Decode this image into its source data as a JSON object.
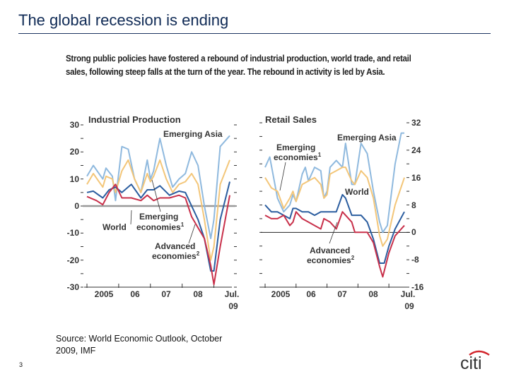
{
  "slide": {
    "title": "The global recession is ending",
    "intro": "Strong public policies have fostered a rebound of industrial production, world trade, and retail sales, following steep falls at the turn of the year. The rebound in activity is led by Asia.",
    "source_line1": "Source: World Economic Outlook, October",
    "source_line2": "2009, IMF",
    "page_number": "3",
    "logo_text": "citi"
  },
  "colors": {
    "emerging_asia": "#8fb9de",
    "emerging_economies": "#f3c679",
    "world": "#2b5d9f",
    "advanced_economies": "#c8304a",
    "zero_line_ip": "#999999",
    "zero_line_rs": "#222222",
    "title": "#0f2a55",
    "logo_arc": "#d2232a",
    "logo_text": "#8a8d91"
  },
  "chart_data": [
    {
      "type": "line",
      "title": "Industrial Production",
      "ylim": [
        -30,
        30
      ],
      "yticks": [
        "30",
        "20",
        "10",
        "0",
        "-10",
        "-20",
        "-30"
      ],
      "xlim": [
        2005,
        2009.5
      ],
      "xticks": [
        "2005",
        "06",
        "07",
        "08",
        "Jul.",
        "09"
      ],
      "axis_side": "left",
      "labels": {
        "emerging_asia": "Emerging Asia",
        "emerging_economies_1": "Emerging",
        "emerging_economies_2": "economies",
        "emerging_economies_sup": "1",
        "world": "World",
        "advanced_1": "Advanced",
        "advanced_2": "economies",
        "advanced_sup": "2"
      },
      "series": [
        {
          "name": "Emerging Asia",
          "color_key": "emerging_asia",
          "x": [
            2005.0,
            2005.2,
            2005.5,
            2005.6,
            2005.8,
            2005.9,
            2006.1,
            2006.3,
            2006.5,
            2006.7,
            2006.9,
            2007.0,
            2007.1,
            2007.3,
            2007.5,
            2007.7,
            2007.9,
            2008.1,
            2008.3,
            2008.5,
            2008.7,
            2008.9,
            2009.0,
            2009.2,
            2009.5
          ],
          "y": [
            11,
            15,
            10,
            14,
            11,
            2,
            22,
            21,
            10,
            5,
            17,
            10,
            13,
            25,
            15,
            7,
            10,
            12,
            20,
            15,
            0,
            -12,
            -5,
            22,
            26
          ]
        },
        {
          "name": "Emerging economies",
          "color_key": "emerging_economies",
          "x": [
            2005.0,
            2005.2,
            2005.5,
            2005.6,
            2005.8,
            2005.9,
            2006.1,
            2006.3,
            2006.5,
            2006.7,
            2006.9,
            2007.0,
            2007.1,
            2007.3,
            2007.5,
            2007.7,
            2007.9,
            2008.1,
            2008.3,
            2008.5,
            2008.7,
            2008.9,
            2009.0,
            2009.2,
            2009.5
          ],
          "y": [
            8,
            12,
            7,
            11,
            10,
            5,
            13,
            17,
            10,
            5,
            12,
            9,
            11,
            17,
            10,
            5,
            8,
            9,
            12,
            8,
            -5,
            -20,
            -15,
            8,
            17
          ]
        },
        {
          "name": "World",
          "color_key": "world",
          "x": [
            2005.0,
            2005.2,
            2005.5,
            2005.7,
            2005.9,
            2006.1,
            2006.4,
            2006.7,
            2006.9,
            2007.1,
            2007.3,
            2007.6,
            2007.9,
            2008.1,
            2008.3,
            2008.5,
            2008.7,
            2008.9,
            2009.0,
            2009.2,
            2009.5
          ],
          "y": [
            5,
            5.5,
            3,
            6,
            7,
            5,
            8,
            3,
            6,
            6,
            7.5,
            4,
            5.5,
            5,
            0,
            -5,
            -12,
            -24,
            -24,
            -5,
            9
          ]
        },
        {
          "name": "Advanced economies",
          "color_key": "advanced_economies",
          "x": [
            2005.0,
            2005.3,
            2005.5,
            2005.7,
            2005.9,
            2006.1,
            2006.4,
            2006.7,
            2006.9,
            2007.1,
            2007.3,
            2007.6,
            2007.9,
            2008.1,
            2008.3,
            2008.5,
            2008.7,
            2008.9,
            2009.0,
            2009.2,
            2009.5
          ],
          "y": [
            3.5,
            2,
            0.5,
            5,
            8,
            3,
            3,
            2,
            4,
            2,
            3,
            3,
            4,
            3,
            -4,
            -8,
            -12,
            -22,
            -29,
            -15,
            4
          ]
        }
      ]
    },
    {
      "type": "line",
      "title": "Retail Sales",
      "ylim": [
        -16,
        32
      ],
      "yticks": [
        "32",
        "24",
        "16",
        "8",
        "0",
        "-8",
        "-16"
      ],
      "xlim": [
        2005,
        2009.5
      ],
      "xticks": [
        "2005",
        "06",
        "07",
        "08",
        "Jul.",
        "09"
      ],
      "axis_side": "right",
      "labels": {
        "emerging_asia": "Emerging Asia",
        "emerging_economies_1": "Emerging",
        "emerging_economies_2": "economies",
        "emerging_economies_sup": "1",
        "world": "World",
        "advanced_1": "Advanced",
        "advanced_2": "economies",
        "advanced_sup": "2"
      },
      "series": [
        {
          "name": "Emerging Asia",
          "color_key": "emerging_asia",
          "x": [
            2005.0,
            2005.15,
            2005.4,
            2005.6,
            2005.8,
            2005.9,
            2006.0,
            2006.2,
            2006.3,
            2006.4,
            2006.6,
            2006.8,
            2006.9,
            2007.0,
            2007.1,
            2007.3,
            2007.5,
            2007.6,
            2007.8,
            2007.9,
            2008.1,
            2008.3,
            2008.5,
            2008.7,
            2008.8,
            2008.95,
            2009.2,
            2009.4,
            2009.5
          ],
          "y": [
            19,
            22,
            10,
            6,
            8,
            11,
            9,
            17,
            19,
            15,
            19,
            18,
            10,
            12,
            19,
            21,
            19,
            26,
            14,
            14,
            26,
            23,
            12,
            3,
            0,
            2,
            20,
            29,
            29
          ]
        },
        {
          "name": "Emerging economies",
          "color_key": "emerging_economies",
          "x": [
            2005.0,
            2005.2,
            2005.4,
            2005.6,
            2005.8,
            2005.9,
            2006.0,
            2006.2,
            2006.4,
            2006.6,
            2006.8,
            2006.9,
            2007.0,
            2007.1,
            2007.3,
            2007.5,
            2007.6,
            2007.8,
            2007.9,
            2008.1,
            2008.3,
            2008.5,
            2008.7,
            2008.8,
            2008.95,
            2009.2,
            2009.5
          ],
          "y": [
            16,
            13,
            12,
            7,
            10,
            12,
            9,
            14,
            15,
            16,
            14,
            10,
            11,
            17,
            18,
            19,
            19,
            15,
            14,
            18,
            16,
            10,
            -1,
            -4,
            -2,
            8,
            16
          ]
        },
        {
          "name": "World",
          "color_key": "world",
          "x": [
            2005.0,
            2005.2,
            2005.4,
            2005.6,
            2005.8,
            2005.9,
            2006.0,
            2006.2,
            2006.4,
            2006.6,
            2006.8,
            2006.9,
            2007.1,
            2007.3,
            2007.5,
            2007.6,
            2007.8,
            2007.9,
            2008.1,
            2008.3,
            2008.5,
            2008.7,
            2008.85,
            2009.0,
            2009.2,
            2009.5
          ],
          "y": [
            8,
            6,
            6,
            5,
            4,
            7,
            7,
            6,
            6,
            5,
            6,
            6,
            6,
            6,
            11,
            10,
            5,
            5,
            5,
            3,
            -2,
            -9,
            -9,
            -4,
            1,
            6
          ]
        },
        {
          "name": "Advanced economies",
          "color_key": "advanced_economies",
          "x": [
            2005.0,
            2005.2,
            2005.4,
            2005.6,
            2005.8,
            2005.9,
            2006.0,
            2006.2,
            2006.4,
            2006.6,
            2006.8,
            2006.9,
            2007.1,
            2007.3,
            2007.5,
            2007.6,
            2007.8,
            2007.9,
            2008.1,
            2008.3,
            2008.5,
            2008.7,
            2008.8,
            2009.0,
            2009.2,
            2009.5
          ],
          "y": [
            5,
            4,
            4,
            5,
            2,
            3,
            6,
            4,
            3,
            2,
            1,
            4,
            3,
            1,
            6,
            5,
            3,
            0,
            0,
            0,
            -3,
            -10,
            -13,
            -6,
            -1,
            2
          ]
        }
      ]
    }
  ]
}
